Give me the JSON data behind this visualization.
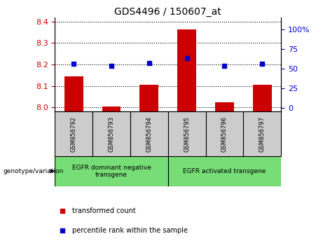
{
  "title": "GDS4496 / 150607_at",
  "samples": [
    "GSM856792",
    "GSM856793",
    "GSM856794",
    "GSM856795",
    "GSM856796",
    "GSM856797"
  ],
  "red_values": [
    8.145,
    8.005,
    8.105,
    8.365,
    8.025,
    8.105
  ],
  "blue_values": [
    8.205,
    8.195,
    8.208,
    8.228,
    8.193,
    8.205
  ],
  "ylim_left": [
    7.98,
    8.42
  ],
  "ylim_right": [
    -5,
    115
  ],
  "yticks_left": [
    8.0,
    8.1,
    8.2,
    8.3,
    8.4
  ],
  "yticks_right": [
    0,
    25,
    50,
    75,
    100
  ],
  "ytick_labels_right": [
    "0",
    "25",
    "50",
    "75",
    "100%"
  ],
  "bar_color": "#cc0000",
  "dot_color": "#0000cc",
  "legend_red": "transformed count",
  "legend_blue": "percentile rank within the sample",
  "genotype_label": "genotype/variation",
  "panel_color": "#cccccc",
  "green_color": "#77dd77",
  "left_tick_color": "#cc0000",
  "right_tick_color": "#0000cc",
  "bar_width": 0.5,
  "group1_label": "EGFR dominant negative\ntransgene",
  "group2_label": "EGFR activated transgene"
}
